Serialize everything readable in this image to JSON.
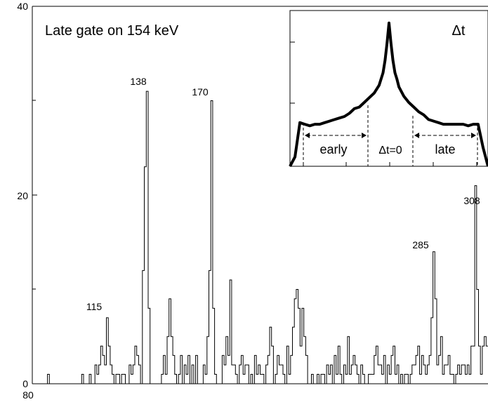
{
  "chart_data": [
    {
      "type": "line",
      "title": "Late gate on 154 keV",
      "xlabel": "",
      "ylabel": "",
      "xlim": [
        80,
        320
      ],
      "ylim": [
        0,
        40
      ],
      "y_ticks": [
        "0",
        "20",
        "40"
      ],
      "x_ticks": [
        "80"
      ],
      "grid": false,
      "step": true,
      "x": [
        80,
        81,
        82,
        83,
        84,
        85,
        86,
        87,
        88,
        89,
        90,
        91,
        92,
        93,
        94,
        95,
        96,
        97,
        98,
        99,
        100,
        101,
        102,
        103,
        104,
        105,
        106,
        107,
        108,
        109,
        110,
        111,
        112,
        113,
        114,
        115,
        116,
        117,
        118,
        119,
        120,
        121,
        122,
        123,
        124,
        125,
        126,
        127,
        128,
        129,
        130,
        131,
        132,
        133,
        134,
        135,
        136,
        137,
        138,
        139,
        140,
        141,
        142,
        143,
        144,
        145,
        146,
        147,
        148,
        149,
        150,
        151,
        152,
        153,
        154,
        155,
        156,
        157,
        158,
        159,
        160,
        161,
        162,
        163,
        164,
        165,
        166,
        167,
        168,
        169,
        170,
        171,
        172,
        173,
        174,
        175,
        176,
        177,
        178,
        179,
        180,
        181,
        182,
        183,
        184,
        185,
        186,
        187,
        188,
        189,
        190,
        191,
        192,
        193,
        194,
        195,
        196,
        197,
        198,
        199,
        200,
        201,
        202,
        203,
        204,
        205,
        206,
        207,
        208,
        209,
        210,
        211,
        212,
        213,
        214,
        215,
        216,
        217,
        218,
        219,
        220,
        221,
        222,
        223,
        224,
        225,
        226,
        227,
        228,
        229,
        230,
        231,
        232,
        233,
        234,
        235,
        236,
        237,
        238,
        239,
        240,
        241,
        242,
        243,
        244,
        245,
        246,
        247,
        248,
        249,
        250,
        251,
        252,
        253,
        254,
        255,
        256,
        257,
        258,
        259,
        260,
        261,
        262,
        263,
        264,
        265,
        266,
        267,
        268,
        269,
        270,
        271,
        272,
        273,
        274,
        275,
        276,
        277,
        278,
        279,
        280,
        281,
        282,
        283,
        284,
        285,
        286,
        287,
        288,
        289,
        290,
        291,
        292,
        293,
        294,
        295,
        296,
        297,
        298,
        299,
        300,
        301,
        302,
        303,
        304,
        305,
        306,
        307,
        308,
        309,
        310,
        311,
        312,
        313,
        314,
        315,
        316,
        317,
        318,
        319
      ],
      "values": [
        0,
        0,
        0,
        0,
        0,
        0,
        0,
        0,
        1,
        0,
        0,
        0,
        0,
        0,
        0,
        0,
        0,
        0,
        0,
        0,
        0,
        0,
        0,
        0,
        0,
        0,
        1,
        0,
        0,
        0,
        1,
        0,
        0,
        2,
        1,
        2,
        4,
        3,
        2,
        7,
        4,
        2,
        1,
        0,
        1,
        1,
        0,
        1,
        1,
        0,
        0,
        2,
        1,
        2,
        4,
        3,
        2,
        0,
        12,
        23,
        31,
        8,
        0,
        0,
        0,
        0,
        0,
        0,
        1,
        3,
        1,
        5,
        9,
        5,
        3,
        1,
        0,
        1,
        3,
        0,
        2,
        1,
        3,
        0,
        2,
        0,
        3,
        0,
        0,
        0,
        2,
        1,
        5,
        12,
        30,
        8,
        1,
        0,
        0,
        0,
        3,
        2,
        5,
        3,
        11,
        2,
        2,
        1,
        0,
        2,
        3,
        1,
        2,
        2,
        0,
        1,
        0,
        3,
        1,
        2,
        1,
        1,
        0,
        2,
        3,
        6,
        4,
        0,
        1,
        3,
        2,
        2,
        1,
        0,
        4,
        1,
        3,
        6,
        9,
        10,
        8,
        4,
        8,
        5,
        3,
        0,
        0,
        1,
        0,
        0,
        1,
        0,
        1,
        1,
        0,
        2,
        1,
        2,
        0,
        3,
        1,
        4,
        1,
        0,
        2,
        1,
        5,
        1,
        2,
        3,
        2,
        1,
        0,
        2,
        1,
        0,
        0,
        1,
        1,
        1,
        3,
        4,
        2,
        2,
        1,
        3,
        0,
        2,
        1,
        3,
        4,
        1,
        2,
        0,
        1,
        0,
        1,
        1,
        0,
        1,
        2,
        2,
        3,
        4,
        1,
        3,
        2,
        1,
        2,
        3,
        7,
        14,
        9,
        2,
        3,
        5,
        1,
        2,
        2,
        3,
        1,
        1,
        0,
        1,
        2,
        1,
        2,
        2,
        1,
        2,
        1,
        4,
        4,
        21,
        10,
        4,
        1,
        4,
        5,
        4
      ],
      "annotations": [
        "115",
        "138",
        "170",
        "285",
        "308"
      ]
    },
    {
      "type": "line",
      "title": "Δt",
      "xlabel": "",
      "ylabel": "",
      "x": [
        -1.0,
        -0.95,
        -0.9,
        -0.85,
        -0.8,
        -0.75,
        -0.7,
        -0.65,
        -0.6,
        -0.55,
        -0.5,
        -0.45,
        -0.4,
        -0.35,
        -0.3,
        -0.25,
        -0.2,
        -0.15,
        -0.1,
        -0.08,
        -0.06,
        -0.04,
        -0.02,
        0.0,
        0.02,
        0.04,
        0.06,
        0.08,
        0.1,
        0.15,
        0.2,
        0.25,
        0.3,
        0.35,
        0.4,
        0.45,
        0.5,
        0.55,
        0.6,
        0.65,
        0.7,
        0.75,
        0.8,
        0.85,
        0.9,
        0.95,
        1.0
      ],
      "values": [
        0.0,
        0.06,
        0.28,
        0.27,
        0.26,
        0.27,
        0.27,
        0.28,
        0.29,
        0.3,
        0.31,
        0.32,
        0.34,
        0.37,
        0.38,
        0.41,
        0.44,
        0.47,
        0.52,
        0.56,
        0.6,
        0.68,
        0.79,
        0.92,
        0.79,
        0.68,
        0.6,
        0.56,
        0.51,
        0.45,
        0.41,
        0.38,
        0.35,
        0.33,
        0.3,
        0.29,
        0.28,
        0.27,
        0.27,
        0.27,
        0.27,
        0.27,
        0.26,
        0.27,
        0.27,
        0.12,
        0.0
      ],
      "regions": [
        {
          "label": "early",
          "from": -0.88,
          "to": -0.38
        },
        {
          "label": "Δt=0",
          "from": -0.38,
          "to": 0.38
        },
        {
          "label": "late",
          "from": 0.38,
          "to": 0.88
        }
      ]
    }
  ]
}
